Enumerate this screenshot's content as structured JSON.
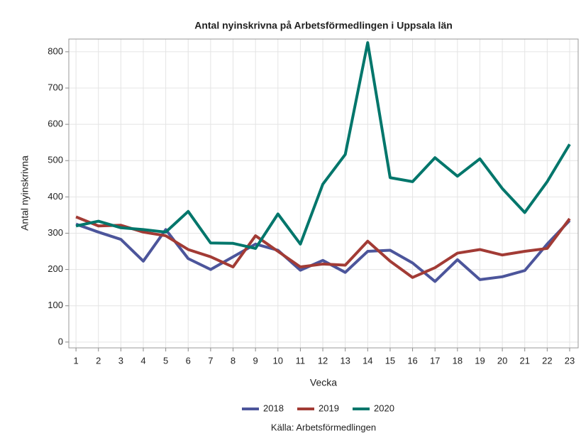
{
  "chart_data": {
    "type": "line",
    "title": "Antal nyinskrivna på Arbetsförmedlingen i Uppsala län",
    "xlabel": "Vecka",
    "ylabel": "Antal nyinskrivna",
    "source": "Källa: Arbetsförmedlingen",
    "x": [
      1,
      2,
      3,
      4,
      5,
      6,
      7,
      8,
      9,
      10,
      11,
      12,
      13,
      14,
      15,
      16,
      17,
      18,
      19,
      20,
      21,
      22,
      23
    ],
    "series": [
      {
        "name": "2018",
        "color": "#4c559b",
        "values": [
          325,
          303,
          283,
          223,
          310,
          230,
          200,
          235,
          270,
          253,
          198,
          225,
          192,
          250,
          253,
          218,
          167,
          227,
          172,
          180,
          197,
          270,
          335
        ]
      },
      {
        "name": "2019",
        "color": "#a23b35",
        "values": [
          345,
          320,
          322,
          303,
          293,
          255,
          235,
          207,
          293,
          250,
          207,
          215,
          212,
          278,
          223,
          178,
          205,
          245,
          255,
          240,
          250,
          258,
          340
        ]
      },
      {
        "name": "2020",
        "color": "#00766b",
        "values": [
          320,
          333,
          315,
          310,
          303,
          360,
          273,
          272,
          258,
          353,
          270,
          435,
          517,
          825,
          453,
          442,
          508,
          457,
          505,
          423,
          357,
          442,
          545
        ]
      }
    ],
    "xlim": [
      0.68,
      23.38
    ],
    "xticks": [
      1,
      2,
      3,
      4,
      5,
      6,
      7,
      8,
      9,
      10,
      11,
      12,
      13,
      14,
      15,
      16,
      17,
      18,
      19,
      20,
      21,
      22,
      23
    ],
    "ylim": [
      -16,
      835
    ],
    "yticks": [
      0,
      100,
      200,
      300,
      400,
      500,
      600,
      700,
      800
    ],
    "grid": true,
    "legend": "bottom"
  }
}
